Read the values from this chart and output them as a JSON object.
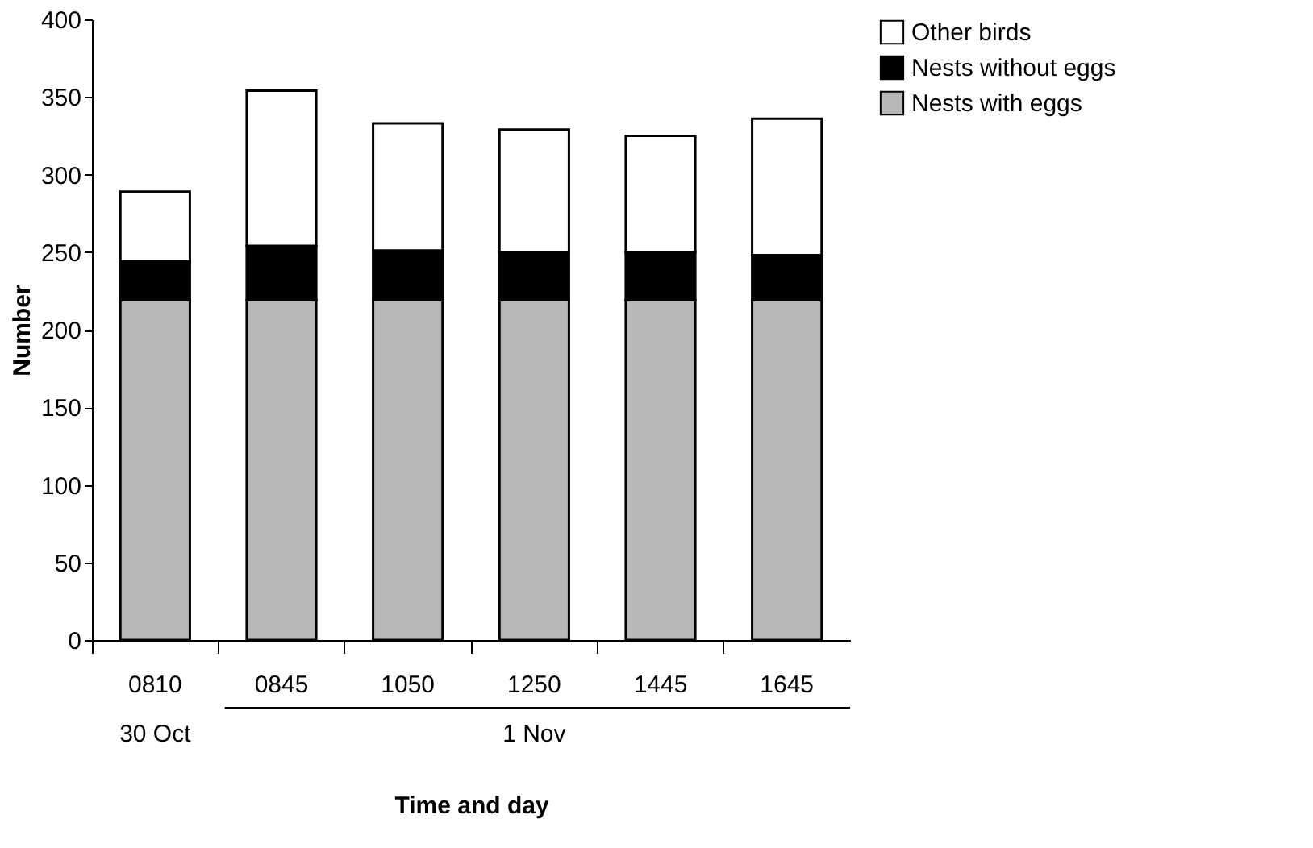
{
  "chart_data": {
    "type": "bar",
    "stacked": true,
    "xlabel": "Time and day",
    "ylabel": "Number",
    "categories": [
      "0810",
      "0845",
      "1050",
      "1250",
      "1445",
      "1645"
    ],
    "series": [
      {
        "name": "Nests with eggs",
        "color": "#b8b8b8",
        "values": [
          219,
          219,
          219,
          219,
          219,
          219
        ]
      },
      {
        "name": "Nests without eggs",
        "color": "#000000",
        "values": [
          25,
          35,
          32,
          31,
          31,
          29
        ]
      },
      {
        "name": "Other birds",
        "color": "#ffffff",
        "values": [
          45,
          100,
          82,
          79,
          75,
          88
        ]
      }
    ],
    "ylim": [
      0,
      400
    ],
    "yticks": [
      0,
      50,
      100,
      150,
      200,
      250,
      300,
      350,
      400
    ],
    "grid": false,
    "legend": "right",
    "annotations": [
      "30 Oct",
      "1 Nov"
    ]
  }
}
